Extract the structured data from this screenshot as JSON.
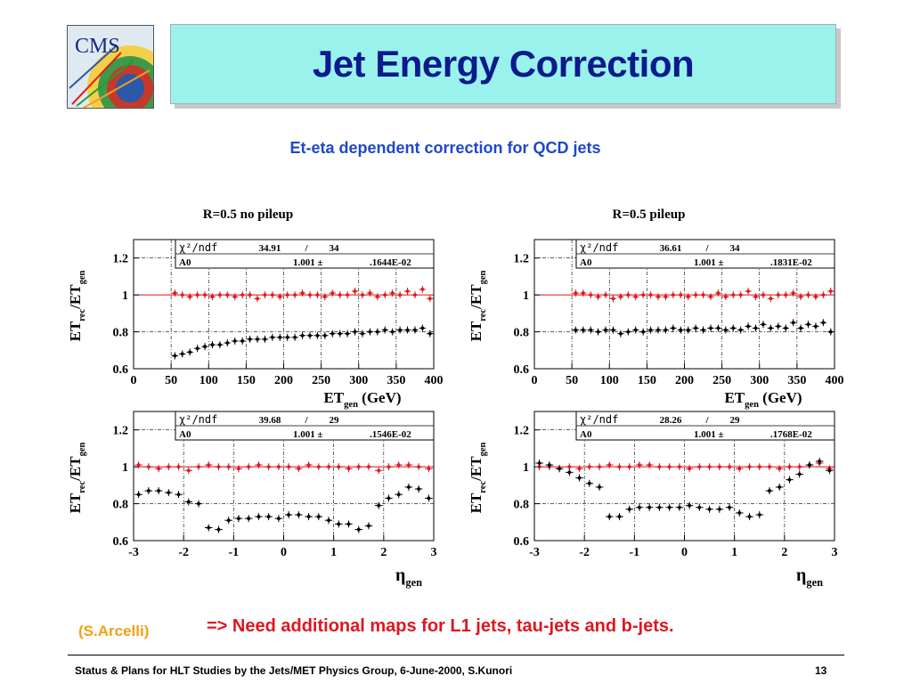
{
  "logo": {
    "text": "CMS"
  },
  "title": "Jet Energy Correction",
  "subtitle": "Et-eta dependent correction for QCD jets",
  "credit": "(S.Arcelli)",
  "note": "=> Need additional maps for L1 jets,  tau-jets and b-jets.",
  "footer": "Status & Plans for HLT Studies by the Jets/MET Physics Group, 6-June-2000, S.Kunori",
  "page_number": "13",
  "colors": {
    "title_bg": "#99f2ec",
    "title_text": "#0c1a8c",
    "subtitle": "#1f47c9",
    "credit": "#f5a00f",
    "note": "#e0161f",
    "corrected": "#e0161f",
    "uncorrected": "#000000"
  },
  "chart_data": [
    {
      "type": "scatter",
      "title": "R=0.5 no pileup",
      "ylabel": "ET_rec/ET_gen",
      "xlabel": "ET_gen (GeV)",
      "xlim": [
        0,
        400
      ],
      "ylim": [
        0.6,
        1.3
      ],
      "xticks": [
        "0",
        "50",
        "100",
        "150",
        "200",
        "250",
        "300",
        "350",
        "400"
      ],
      "yticks": [
        "0.6",
        "0.8",
        "1",
        "1.2"
      ],
      "stats": {
        "chi2_label": "χ²/ndf",
        "chi2": "34.91",
        "sep": "/",
        "ndf": "34",
        "param": "A0",
        "value": "1.001 ±",
        "error": ".1644E-02"
      },
      "series": [
        {
          "color": "#e0161f",
          "x": [
            55,
            65,
            75,
            85,
            95,
            105,
            115,
            125,
            135,
            145,
            155,
            165,
            175,
            185,
            195,
            205,
            215,
            225,
            235,
            245,
            255,
            265,
            275,
            285,
            295,
            305,
            315,
            325,
            335,
            345,
            355,
            365,
            375,
            385,
            395
          ],
          "y": [
            1.01,
            1.0,
            0.99,
            1.0,
            1.0,
            0.99,
            1.0,
            1.0,
            0.99,
            1.0,
            1.0,
            0.98,
            1.0,
            1.0,
            0.99,
            1.0,
            1.0,
            1.01,
            1.0,
            1.0,
            0.99,
            1.01,
            1.0,
            1.0,
            1.02,
            1.0,
            1.01,
            0.99,
            1.0,
            1.01,
            1.0,
            1.02,
            1.0,
            1.03,
            0.98
          ]
        },
        {
          "color": "#000000",
          "x": [
            55,
            65,
            75,
            85,
            95,
            105,
            115,
            125,
            135,
            145,
            155,
            165,
            175,
            185,
            195,
            205,
            215,
            225,
            235,
            245,
            255,
            265,
            275,
            285,
            295,
            305,
            315,
            325,
            335,
            345,
            355,
            365,
            375,
            385,
            395
          ],
          "y": [
            0.67,
            0.68,
            0.69,
            0.71,
            0.72,
            0.73,
            0.73,
            0.74,
            0.75,
            0.75,
            0.76,
            0.76,
            0.76,
            0.77,
            0.77,
            0.77,
            0.77,
            0.78,
            0.78,
            0.78,
            0.78,
            0.79,
            0.79,
            0.79,
            0.8,
            0.79,
            0.8,
            0.8,
            0.81,
            0.8,
            0.81,
            0.81,
            0.81,
            0.82,
            0.79
          ]
        }
      ]
    },
    {
      "type": "scatter",
      "title": "R=0.5 pileup",
      "ylabel": "ET_rec/ET_gen",
      "xlabel": "ET_gen (GeV)",
      "xlim": [
        0,
        400
      ],
      "ylim": [
        0.6,
        1.3
      ],
      "xticks": [
        "0",
        "50",
        "100",
        "150",
        "200",
        "250",
        "300",
        "350",
        "400"
      ],
      "yticks": [
        "0.6",
        "0.8",
        "1",
        "1.2"
      ],
      "stats": {
        "chi2_label": "χ²/ndf",
        "chi2": "36.61",
        "sep": "/",
        "ndf": "34",
        "param": "A0",
        "value": "1.001 ±",
        "error": ".1831E-02"
      },
      "series": [
        {
          "color": "#e0161f",
          "x": [
            55,
            65,
            75,
            85,
            95,
            105,
            115,
            125,
            135,
            145,
            155,
            165,
            175,
            185,
            195,
            205,
            215,
            225,
            235,
            245,
            255,
            265,
            275,
            285,
            295,
            305,
            315,
            325,
            335,
            345,
            355,
            365,
            375,
            385,
            395
          ],
          "y": [
            1.01,
            1.01,
            1.0,
            0.99,
            1.0,
            0.98,
            0.99,
            1.0,
            0.99,
            1.0,
            1.0,
            0.99,
            0.99,
            1.0,
            1.0,
            0.99,
            1.0,
            1.0,
            0.99,
            1.01,
            0.99,
            1.0,
            1.0,
            1.02,
            0.99,
            1.0,
            0.98,
            1.0,
            1.0,
            1.01,
            0.99,
            1.0,
            0.99,
            1.0,
            1.02
          ]
        },
        {
          "color": "#000000",
          "x": [
            55,
            65,
            75,
            85,
            95,
            105,
            115,
            125,
            135,
            145,
            155,
            165,
            175,
            185,
            195,
            205,
            215,
            225,
            235,
            245,
            255,
            265,
            275,
            285,
            295,
            305,
            315,
            325,
            335,
            345,
            355,
            365,
            375,
            385,
            395
          ],
          "y": [
            0.81,
            0.81,
            0.81,
            0.8,
            0.81,
            0.81,
            0.79,
            0.8,
            0.81,
            0.8,
            0.81,
            0.81,
            0.81,
            0.82,
            0.81,
            0.81,
            0.82,
            0.81,
            0.82,
            0.82,
            0.81,
            0.82,
            0.81,
            0.83,
            0.82,
            0.84,
            0.82,
            0.83,
            0.82,
            0.85,
            0.82,
            0.84,
            0.83,
            0.85,
            0.8
          ]
        }
      ]
    },
    {
      "type": "scatter",
      "ylabel": "ET_rec/ET_gen",
      "xlabel": "η_gen",
      "xlim": [
        -3,
        3
      ],
      "ylim": [
        0.6,
        1.3
      ],
      "xticks": [
        "-3",
        "-2",
        "-1",
        "0",
        "1",
        "2",
        "3"
      ],
      "yticks": [
        "0.6",
        "0.8",
        "1",
        "1.2"
      ],
      "stats": {
        "chi2_label": "χ²/ndf",
        "chi2": "39.68",
        "sep": "/",
        "ndf": "29",
        "param": "A0",
        "value": "1.001 ±",
        "error": ".1546E-02"
      },
      "series": [
        {
          "color": "#e0161f",
          "x": [
            -2.9,
            -2.7,
            -2.5,
            -2.3,
            -2.1,
            -1.9,
            -1.7,
            -1.5,
            -1.3,
            -1.1,
            -0.9,
            -0.7,
            -0.5,
            -0.3,
            -0.1,
            0.1,
            0.3,
            0.5,
            0.7,
            0.9,
            1.1,
            1.3,
            1.5,
            1.7,
            1.9,
            2.1,
            2.3,
            2.5,
            2.7,
            2.9
          ],
          "y": [
            1.01,
            1.0,
            0.99,
            1.0,
            1.0,
            0.98,
            1.0,
            1.01,
            1.0,
            1.0,
            0.99,
            1.0,
            1.01,
            1.0,
            1.0,
            1.0,
            0.99,
            1.01,
            1.0,
            1.0,
            1.0,
            0.99,
            1.0,
            1.0,
            0.98,
            1.0,
            1.01,
            1.01,
            1.0,
            0.99
          ]
        },
        {
          "color": "#000000",
          "x": [
            -2.9,
            -2.7,
            -2.5,
            -2.3,
            -2.1,
            -1.9,
            -1.7,
            -1.5,
            -1.3,
            -1.1,
            -0.9,
            -0.7,
            -0.5,
            -0.3,
            -0.1,
            0.1,
            0.3,
            0.5,
            0.7,
            0.9,
            1.1,
            1.3,
            1.5,
            1.7,
            1.9,
            2.1,
            2.3,
            2.5,
            2.7,
            2.9
          ],
          "y": [
            0.85,
            0.87,
            0.87,
            0.86,
            0.85,
            0.81,
            0.8,
            0.67,
            0.66,
            0.71,
            0.72,
            0.72,
            0.73,
            0.73,
            0.72,
            0.74,
            0.74,
            0.73,
            0.73,
            0.71,
            0.69,
            0.69,
            0.66,
            0.68,
            0.79,
            0.83,
            0.85,
            0.89,
            0.88,
            0.83
          ]
        }
      ]
    },
    {
      "type": "scatter",
      "ylabel": "ET_rec/ET_gen",
      "xlabel": "η_gen",
      "xlim": [
        -3,
        3
      ],
      "ylim": [
        0.6,
        1.3
      ],
      "xticks": [
        "-3",
        "-2",
        "-1",
        "0",
        "1",
        "2",
        "3"
      ],
      "yticks": [
        "0.6",
        "0.8",
        "1",
        "1.2"
      ],
      "stats": {
        "chi2_label": "χ²/ndf",
        "chi2": "28.26",
        "sep": "/",
        "ndf": "29",
        "param": "A0",
        "value": "1.001 ±",
        "error": ".1768E-02"
      },
      "series": [
        {
          "color": "#e0161f",
          "x": [
            -2.9,
            -2.7,
            -2.5,
            -2.3,
            -2.1,
            -1.9,
            -1.7,
            -1.5,
            -1.3,
            -1.1,
            -0.9,
            -0.7,
            -0.5,
            -0.3,
            -0.1,
            0.1,
            0.3,
            0.5,
            0.7,
            0.9,
            1.1,
            1.3,
            1.5,
            1.7,
            1.9,
            2.1,
            2.3,
            2.5,
            2.7,
            2.9
          ],
          "y": [
            1.0,
            1.0,
            0.99,
            1.0,
            0.99,
            1.0,
            1.0,
            1.01,
            1.0,
            1.0,
            1.01,
            1.01,
            1.0,
            1.0,
            1.0,
            0.99,
            1.0,
            1.0,
            1.0,
            1.0,
            0.99,
            1.0,
            1.0,
            1.0,
            0.99,
            1.0,
            1.0,
            1.01,
            1.02,
            0.99
          ]
        },
        {
          "color": "#000000",
          "x": [
            -2.9,
            -2.7,
            -2.5,
            -2.3,
            -2.1,
            -1.9,
            -1.7,
            -1.5,
            -1.3,
            -1.1,
            -0.9,
            -0.7,
            -0.5,
            -0.3,
            -0.1,
            0.1,
            0.3,
            0.5,
            0.7,
            0.9,
            1.1,
            1.3,
            1.5,
            1.7,
            1.9,
            2.1,
            2.3,
            2.5,
            2.7,
            2.9
          ],
          "y": [
            1.02,
            1.01,
            0.99,
            0.97,
            0.94,
            0.91,
            0.89,
            0.73,
            0.73,
            0.77,
            0.78,
            0.78,
            0.78,
            0.78,
            0.78,
            0.79,
            0.78,
            0.77,
            0.77,
            0.78,
            0.75,
            0.73,
            0.74,
            0.87,
            0.89,
            0.93,
            0.96,
            1.01,
            1.03,
            0.98
          ]
        }
      ]
    }
  ]
}
